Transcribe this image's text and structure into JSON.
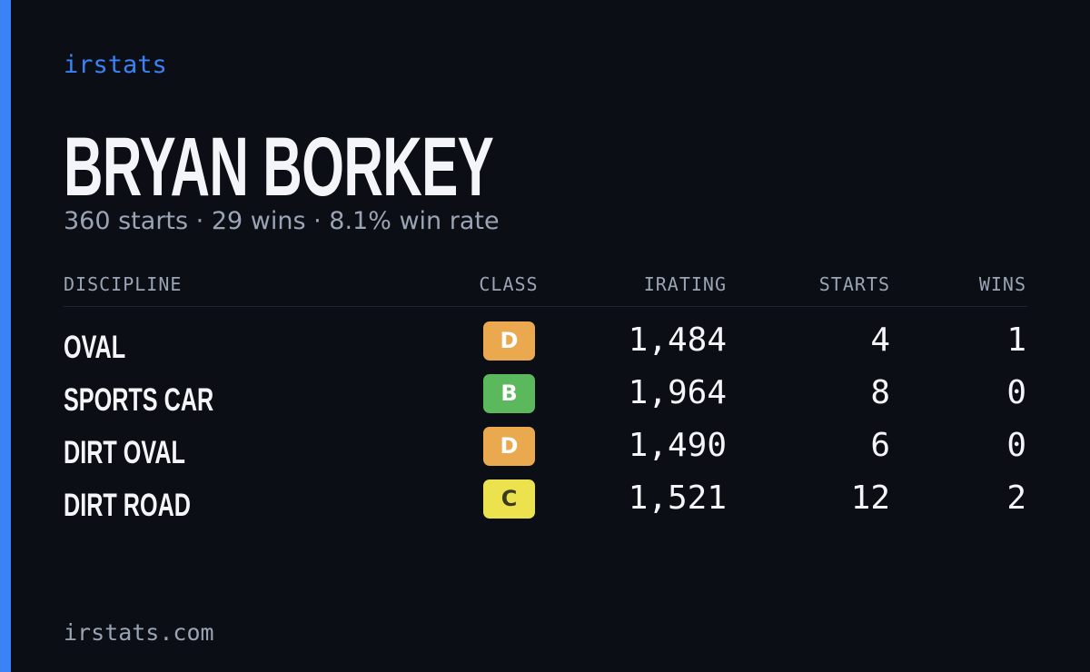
{
  "brand": "irstats",
  "driver": {
    "name": "BRYAN BORKEY",
    "summary": "360 starts · 29 wins · 8.1% win rate"
  },
  "table": {
    "headers": [
      "DISCIPLINE",
      "CLASS",
      "IRATING",
      "STARTS",
      "WINS"
    ],
    "rows": [
      {
        "discipline": "OVAL",
        "class": "D",
        "class_color": "#eaa94e",
        "irating": "1,484",
        "starts": 4,
        "wins": 1
      },
      {
        "discipline": "SPORTS CAR",
        "class": "B",
        "class_color": "#5cb85c",
        "irating": "1,964",
        "starts": 8,
        "wins": 0
      },
      {
        "discipline": "DIRT OVAL",
        "class": "D",
        "class_color": "#eaa94e",
        "irating": "1,490",
        "starts": 6,
        "wins": 0
      },
      {
        "discipline": "DIRT ROAD",
        "class": "C",
        "class_color": "#ece24e",
        "irating": "1,521",
        "starts": 12,
        "wins": 2
      }
    ]
  },
  "footer": "irstats.com"
}
